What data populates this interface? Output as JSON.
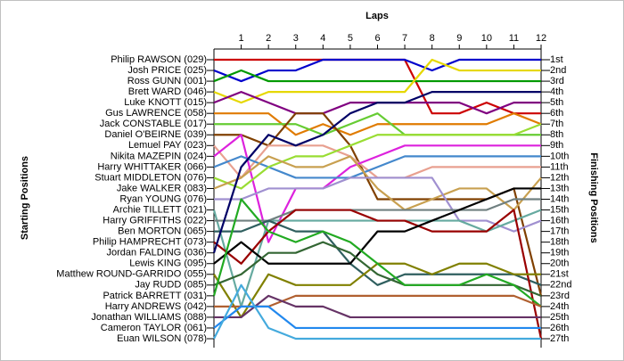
{
  "chart_data": {
    "type": "bump",
    "title": "Laps",
    "y_label": "Starting Positions",
    "y2_label": "Finishing Positions",
    "x": [
      0,
      1,
      2,
      3,
      4,
      5,
      6,
      7,
      8,
      9,
      10,
      11,
      12
    ],
    "xlim": [
      0,
      12
    ],
    "xticks": [
      1,
      2,
      3,
      4,
      5,
      6,
      7,
      8,
      9,
      10,
      11,
      12
    ],
    "ylim": [
      1,
      27
    ],
    "yticks": [
      {
        "value": 1,
        "label": "1st"
      },
      {
        "value": 2,
        "label": "2nd"
      },
      {
        "value": 3,
        "label": "3rd"
      },
      {
        "value": 4,
        "label": "4th"
      },
      {
        "value": 5,
        "label": "5th"
      },
      {
        "value": 6,
        "label": "6th"
      },
      {
        "value": 7,
        "label": "7th"
      },
      {
        "value": 8,
        "label": "8th"
      },
      {
        "value": 9,
        "label": "9th"
      },
      {
        "value": 10,
        "label": "10th"
      },
      {
        "value": 11,
        "label": "11th"
      },
      {
        "value": 12,
        "label": "12th"
      },
      {
        "value": 13,
        "label": "13th"
      },
      {
        "value": 14,
        "label": "14th"
      },
      {
        "value": 15,
        "label": "15th"
      },
      {
        "value": 16,
        "label": "16th"
      },
      {
        "value": 17,
        "label": "17th"
      },
      {
        "value": 18,
        "label": "18th"
      },
      {
        "value": 19,
        "label": "19th"
      },
      {
        "value": 20,
        "label": "20th"
      },
      {
        "value": 21,
        "label": "21st"
      },
      {
        "value": 22,
        "label": "22nd"
      },
      {
        "value": 23,
        "label": "23rd"
      },
      {
        "value": 24,
        "label": "24th"
      },
      {
        "value": 25,
        "label": "25th"
      },
      {
        "value": 26,
        "label": "26th"
      },
      {
        "value": 27,
        "label": "27th"
      }
    ],
    "series": [
      {
        "name": "Philip RAWSON (029)",
        "color": "#cc0000",
        "values": [
          1,
          1,
          1,
          1,
          1,
          1,
          1,
          1,
          6,
          6,
          5,
          6,
          6
        ]
      },
      {
        "name": "Josh PRICE (025)",
        "color": "#0000cc",
        "values": [
          2,
          3,
          2,
          2,
          1,
          1,
          1,
          1,
          2,
          1,
          1,
          1,
          1
        ]
      },
      {
        "name": "Ross GUNN (001)",
        "color": "#009900",
        "values": [
          3,
          2,
          3,
          3,
          3,
          3,
          3,
          3,
          3,
          3,
          3,
          3,
          3
        ]
      },
      {
        "name": "Brett WARD (046)",
        "color": "#e6d800",
        "values": [
          4,
          5,
          4,
          4,
          4,
          4,
          4,
          4,
          1,
          2,
          2,
          2,
          2
        ]
      },
      {
        "name": "Luke KNOTT (015)",
        "color": "#800080",
        "values": [
          5,
          4,
          5,
          6,
          6,
          5,
          5,
          5,
          5,
          5,
          6,
          5,
          5
        ]
      },
      {
        "name": "Gus LAWRENCE (058)",
        "color": "#e07b00",
        "values": [
          6,
          6,
          6,
          8,
          7,
          8,
          7,
          7,
          7,
          7,
          7,
          6,
          7
        ]
      },
      {
        "name": "Jack CONSTABLE (017)",
        "color": "#66cc33",
        "values": [
          7,
          7,
          7,
          7,
          8,
          7,
          6,
          8,
          8,
          8,
          8,
          8,
          8
        ]
      },
      {
        "name": "Daniel O'BEIRNE (039)",
        "color": "#804000",
        "values": [
          8,
          8,
          9,
          6,
          6,
          9,
          14,
          14,
          14,
          14,
          14,
          13,
          23
        ]
      },
      {
        "name": "Lemuel PAY (023)",
        "color": "#e8a090",
        "values": [
          9,
          12,
          9,
          9,
          9,
          10,
          12,
          12,
          11,
          11,
          11,
          11,
          11
        ]
      },
      {
        "name": "Nikita MAZEPIN (024)",
        "color": "#dd22dd",
        "values": [
          10,
          8,
          18,
          13,
          13,
          11,
          10,
          9,
          9,
          9,
          9,
          9,
          9
        ]
      },
      {
        "name": "Harry WHITTAKER (066)",
        "color": "#4488cc",
        "values": [
          11,
          10,
          11,
          12,
          12,
          12,
          11,
          10,
          10,
          10,
          10,
          10,
          10
        ]
      },
      {
        "name": "Stuart MIDDLETON (076)",
        "color": "#99dd33",
        "values": [
          12,
          13,
          11,
          10,
          10,
          9,
          8,
          8,
          8,
          8,
          8,
          8,
          7
        ]
      },
      {
        "name": "Jake WALKER (083)",
        "color": "#c8a050",
        "values": [
          13,
          12,
          10,
          11,
          11,
          10,
          13,
          15,
          14,
          13,
          13,
          15,
          12
        ]
      },
      {
        "name": "Ryan YOUNG (076)",
        "color": "#a090d0",
        "values": [
          14,
          14,
          13,
          13,
          13,
          12,
          12,
          12,
          12,
          16,
          16,
          17,
          16
        ]
      },
      {
        "name": "Archie TILLETT (021)",
        "color": "#66aaa0",
        "values": [
          15,
          24,
          16,
          16,
          16,
          16,
          16,
          16,
          16,
          16,
          17,
          16,
          15
        ]
      },
      {
        "name": "Harry GRIFFITHS (022)",
        "color": "#708080",
        "values": [
          16,
          16,
          16,
          15,
          15,
          15,
          15,
          15,
          15,
          15,
          15,
          14,
          14
        ]
      },
      {
        "name": "Ben MORTON (065)",
        "color": "#2f5f5f",
        "values": [
          17,
          17,
          16,
          17,
          17,
          20,
          22,
          21,
          21,
          21,
          21,
          21,
          22
        ]
      },
      {
        "name": "Philip HAMPRECHT (073)",
        "color": "#990000",
        "values": [
          18,
          20,
          17,
          15,
          15,
          15,
          16,
          16,
          17,
          17,
          17,
          15,
          27
        ]
      },
      {
        "name": "Jordan FALDING (036)",
        "color": "#000066",
        "values": [
          19,
          11,
          8,
          9,
          8,
          6,
          5,
          5,
          4,
          4,
          4,
          4,
          4
        ]
      },
      {
        "name": "Lewis KING (095)",
        "color": "#000000",
        "values": [
          20,
          18,
          20,
          20,
          20,
          20,
          17,
          17,
          16,
          15,
          14,
          13,
          13
        ]
      },
      {
        "name": "Matthew ROUND-GARRIDO (055)",
        "color": "#808000",
        "values": [
          21,
          25,
          21,
          22,
          22,
          22,
          20,
          20,
          21,
          20,
          20,
          21,
          21
        ]
      },
      {
        "name": "Jay RUDD (085)",
        "color": "#336633",
        "values": [
          22,
          21,
          19,
          19,
          18,
          19,
          21,
          22,
          22,
          22,
          22,
          22,
          23
        ]
      },
      {
        "name": "Patrick BARRETT (031)",
        "color": "#22aa22",
        "values": [
          23,
          14,
          17,
          18,
          17,
          18,
          20,
          22,
          22,
          22,
          21,
          22,
          24
        ]
      },
      {
        "name": "Harry ANDREWS (042)",
        "color": "#b06030",
        "values": [
          24,
          24,
          24,
          23,
          23,
          23,
          23,
          23,
          23,
          23,
          23,
          23,
          24
        ]
      },
      {
        "name": "Jonathan WILLIAMS (088)",
        "color": "#663366",
        "values": [
          25,
          25,
          23,
          24,
          24,
          25,
          25,
          25,
          25,
          25,
          25,
          25,
          25
        ]
      },
      {
        "name": "Cameron TAYLOR (061)",
        "color": "#2288ee",
        "values": [
          26,
          24,
          24,
          26,
          26,
          26,
          26,
          26,
          26,
          26,
          26,
          26,
          26
        ]
      },
      {
        "name": "Euan WILSON (078)",
        "color": "#44aadd",
        "values": [
          27,
          22,
          26,
          27,
          27,
          27,
          27,
          27,
          27,
          27,
          27,
          27,
          27
        ]
      }
    ]
  }
}
